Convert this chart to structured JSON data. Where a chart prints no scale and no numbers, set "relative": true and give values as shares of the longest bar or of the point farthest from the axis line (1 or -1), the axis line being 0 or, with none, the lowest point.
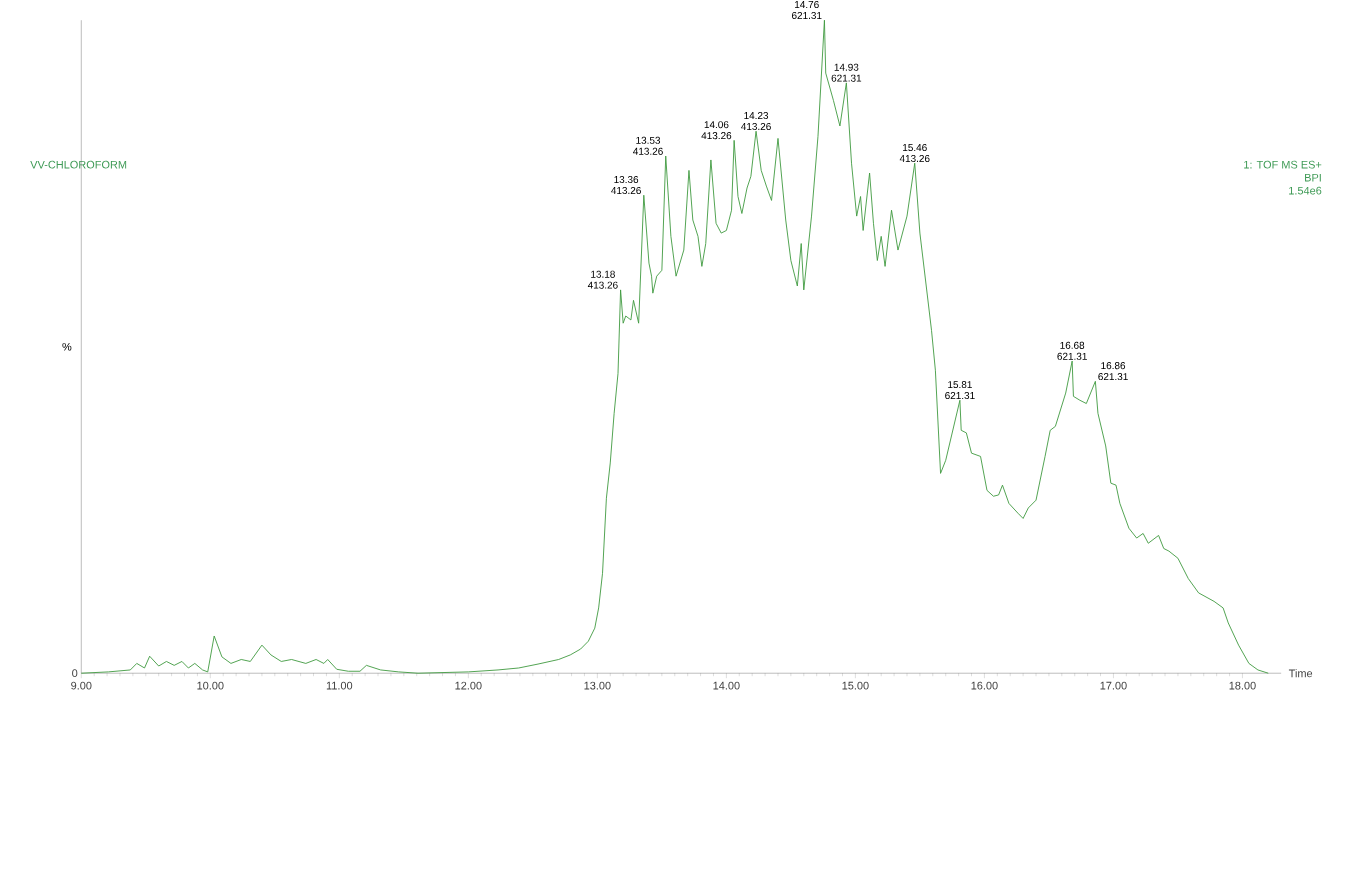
{
  "chart_data": {
    "type": "line",
    "title": "VV-CHLOROFORM",
    "xlabel": "Time",
    "ylabel": "%",
    "relative": true,
    "color": "#3f9a3f",
    "line_style": "solid",
    "xlim": [
      9.0,
      18.3
    ],
    "xticks": [
      {
        "value": 9,
        "label": "9.00"
      },
      {
        "value": 10,
        "label": "10.00"
      },
      {
        "value": 11,
        "label": "11.00"
      },
      {
        "value": 12,
        "label": "12.00"
      },
      {
        "value": 13,
        "label": "13.00"
      },
      {
        "value": 14,
        "label": "14.00"
      },
      {
        "value": 15,
        "label": "15.00"
      },
      {
        "value": 16,
        "label": "16.00"
      },
      {
        "value": 17,
        "label": "17.00"
      },
      {
        "value": 18,
        "label": "18.00"
      }
    ],
    "annotations": [
      "1: TOF MS ES+",
      "BPI",
      "1.54e6",
      {
        "text": "0",
        "x": 9.0,
        "y": 0
      },
      {
        "text": "13.18 413.26",
        "x": 13.18,
        "y": 0.587
      },
      {
        "text": "13.36 413.26",
        "x": 13.36,
        "y": 0.732
      },
      {
        "text": "13.53 413.26",
        "x": 13.53,
        "y": 0.792
      },
      {
        "text": "14.06 413.26",
        "x": 14.06,
        "y": 0.816
      },
      {
        "text": "14.23 413.26",
        "x": 14.23,
        "y": 0.83
      },
      {
        "text": "14.76 621.31",
        "x": 14.76,
        "y": 1
      },
      {
        "text": "14.93 621.31",
        "x": 14.93,
        "y": 0.904
      },
      {
        "text": "15.46 413.26",
        "x": 15.46,
        "y": 0.781
      },
      {
        "text": "15.81 621.31",
        "x": 15.81,
        "y": 0.418
      },
      {
        "text": "16.68 621.31",
        "x": 16.68,
        "y": 0.478
      },
      {
        "text": "16.86 621.31",
        "x": 16.86,
        "y": 0.447
      }
    ],
    "x": [
      9.0,
      9.21,
      9.38,
      9.43,
      9.49,
      9.53,
      9.6,
      9.66,
      9.72,
      9.78,
      9.83,
      9.88,
      9.94,
      9.98,
      10.03,
      10.09,
      10.16,
      10.24,
      10.31,
      10.4,
      10.47,
      10.55,
      10.63,
      10.74,
      10.82,
      10.88,
      10.91,
      10.98,
      11.07,
      11.16,
      11.21,
      11.32,
      11.46,
      11.61,
      12.0,
      12.23,
      12.39,
      12.54,
      12.7,
      12.79,
      12.87,
      12.93,
      12.98,
      13.01,
      13.04,
      13.07,
      13.1,
      13.13,
      13.16,
      13.18,
      13.2,
      13.22,
      13.26,
      13.28,
      13.32,
      13.36,
      13.4,
      13.42,
      13.43,
      13.46,
      13.5,
      13.53,
      13.57,
      13.61,
      13.67,
      13.71,
      13.74,
      13.78,
      13.81,
      13.84,
      13.88,
      13.92,
      13.96,
      14.0,
      14.04,
      14.06,
      14.09,
      14.12,
      14.16,
      14.19,
      14.23,
      14.27,
      14.31,
      14.35,
      14.4,
      14.46,
      14.5,
      14.55,
      14.58,
      14.6,
      14.66,
      14.71,
      14.76,
      14.77,
      14.83,
      14.88,
      14.93,
      14.97,
      15.01,
      15.04,
      15.06,
      15.11,
      15.14,
      15.17,
      15.2,
      15.23,
      15.28,
      15.33,
      15.4,
      15.46,
      15.5,
      15.59,
      15.62,
      15.66,
      15.7,
      15.81,
      15.82,
      15.86,
      15.9,
      15.97,
      16.02,
      16.07,
      16.11,
      16.14,
      16.19,
      16.26,
      16.3,
      16.34,
      16.4,
      16.47,
      16.51,
      16.55,
      16.63,
      16.68,
      16.69,
      16.74,
      16.79,
      16.86,
      16.88,
      16.94,
      16.98,
      17.02,
      17.05,
      17.12,
      17.18,
      17.23,
      17.27,
      17.35,
      17.39,
      17.43,
      17.5,
      17.58,
      17.66,
      17.78,
      17.85,
      17.89,
      17.97,
      18.05,
      18.12,
      18.2
    ],
    "values": [
      0,
      0.002,
      0.005,
      0.015,
      0.008,
      0.026,
      0.011,
      0.018,
      0.012,
      0.018,
      0.008,
      0.015,
      0.005,
      0.002,
      0.057,
      0.025,
      0.015,
      0.021,
      0.018,
      0.043,
      0.028,
      0.018,
      0.021,
      0.015,
      0.021,
      0.015,
      0.021,
      0.006,
      0.003,
      0.003,
      0.012,
      0.005,
      0.002,
      0,
      0.002,
      0.005,
      0.008,
      0.014,
      0.021,
      0.028,
      0.037,
      0.049,
      0.069,
      0.1,
      0.153,
      0.268,
      0.322,
      0.398,
      0.459,
      0.587,
      0.536,
      0.547,
      0.541,
      0.571,
      0.536,
      0.732,
      0.628,
      0.608,
      0.582,
      0.608,
      0.617,
      0.792,
      0.669,
      0.608,
      0.648,
      0.77,
      0.694,
      0.669,
      0.623,
      0.658,
      0.786,
      0.689,
      0.674,
      0.678,
      0.709,
      0.816,
      0.73,
      0.704,
      0.743,
      0.761,
      0.83,
      0.77,
      0.746,
      0.724,
      0.819,
      0.694,
      0.632,
      0.593,
      0.658,
      0.587,
      0.7,
      0.822,
      1,
      0.919,
      0.877,
      0.838,
      0.904,
      0.781,
      0.7,
      0.73,
      0.678,
      0.766,
      0.689,
      0.632,
      0.669,
      0.623,
      0.709,
      0.648,
      0.7,
      0.781,
      0.674,
      0.525,
      0.464,
      0.306,
      0.326,
      0.418,
      0.372,
      0.368,
      0.337,
      0.332,
      0.28,
      0.271,
      0.273,
      0.288,
      0.26,
      0.245,
      0.237,
      0.253,
      0.265,
      0.332,
      0.372,
      0.378,
      0.429,
      0.478,
      0.424,
      0.418,
      0.413,
      0.447,
      0.398,
      0.348,
      0.291,
      0.288,
      0.26,
      0.222,
      0.207,
      0.214,
      0.199,
      0.211,
      0.191,
      0.187,
      0.176,
      0.145,
      0.123,
      0.11,
      0.1,
      0.077,
      0.043,
      0.015,
      0.005,
      0
    ]
  }
}
